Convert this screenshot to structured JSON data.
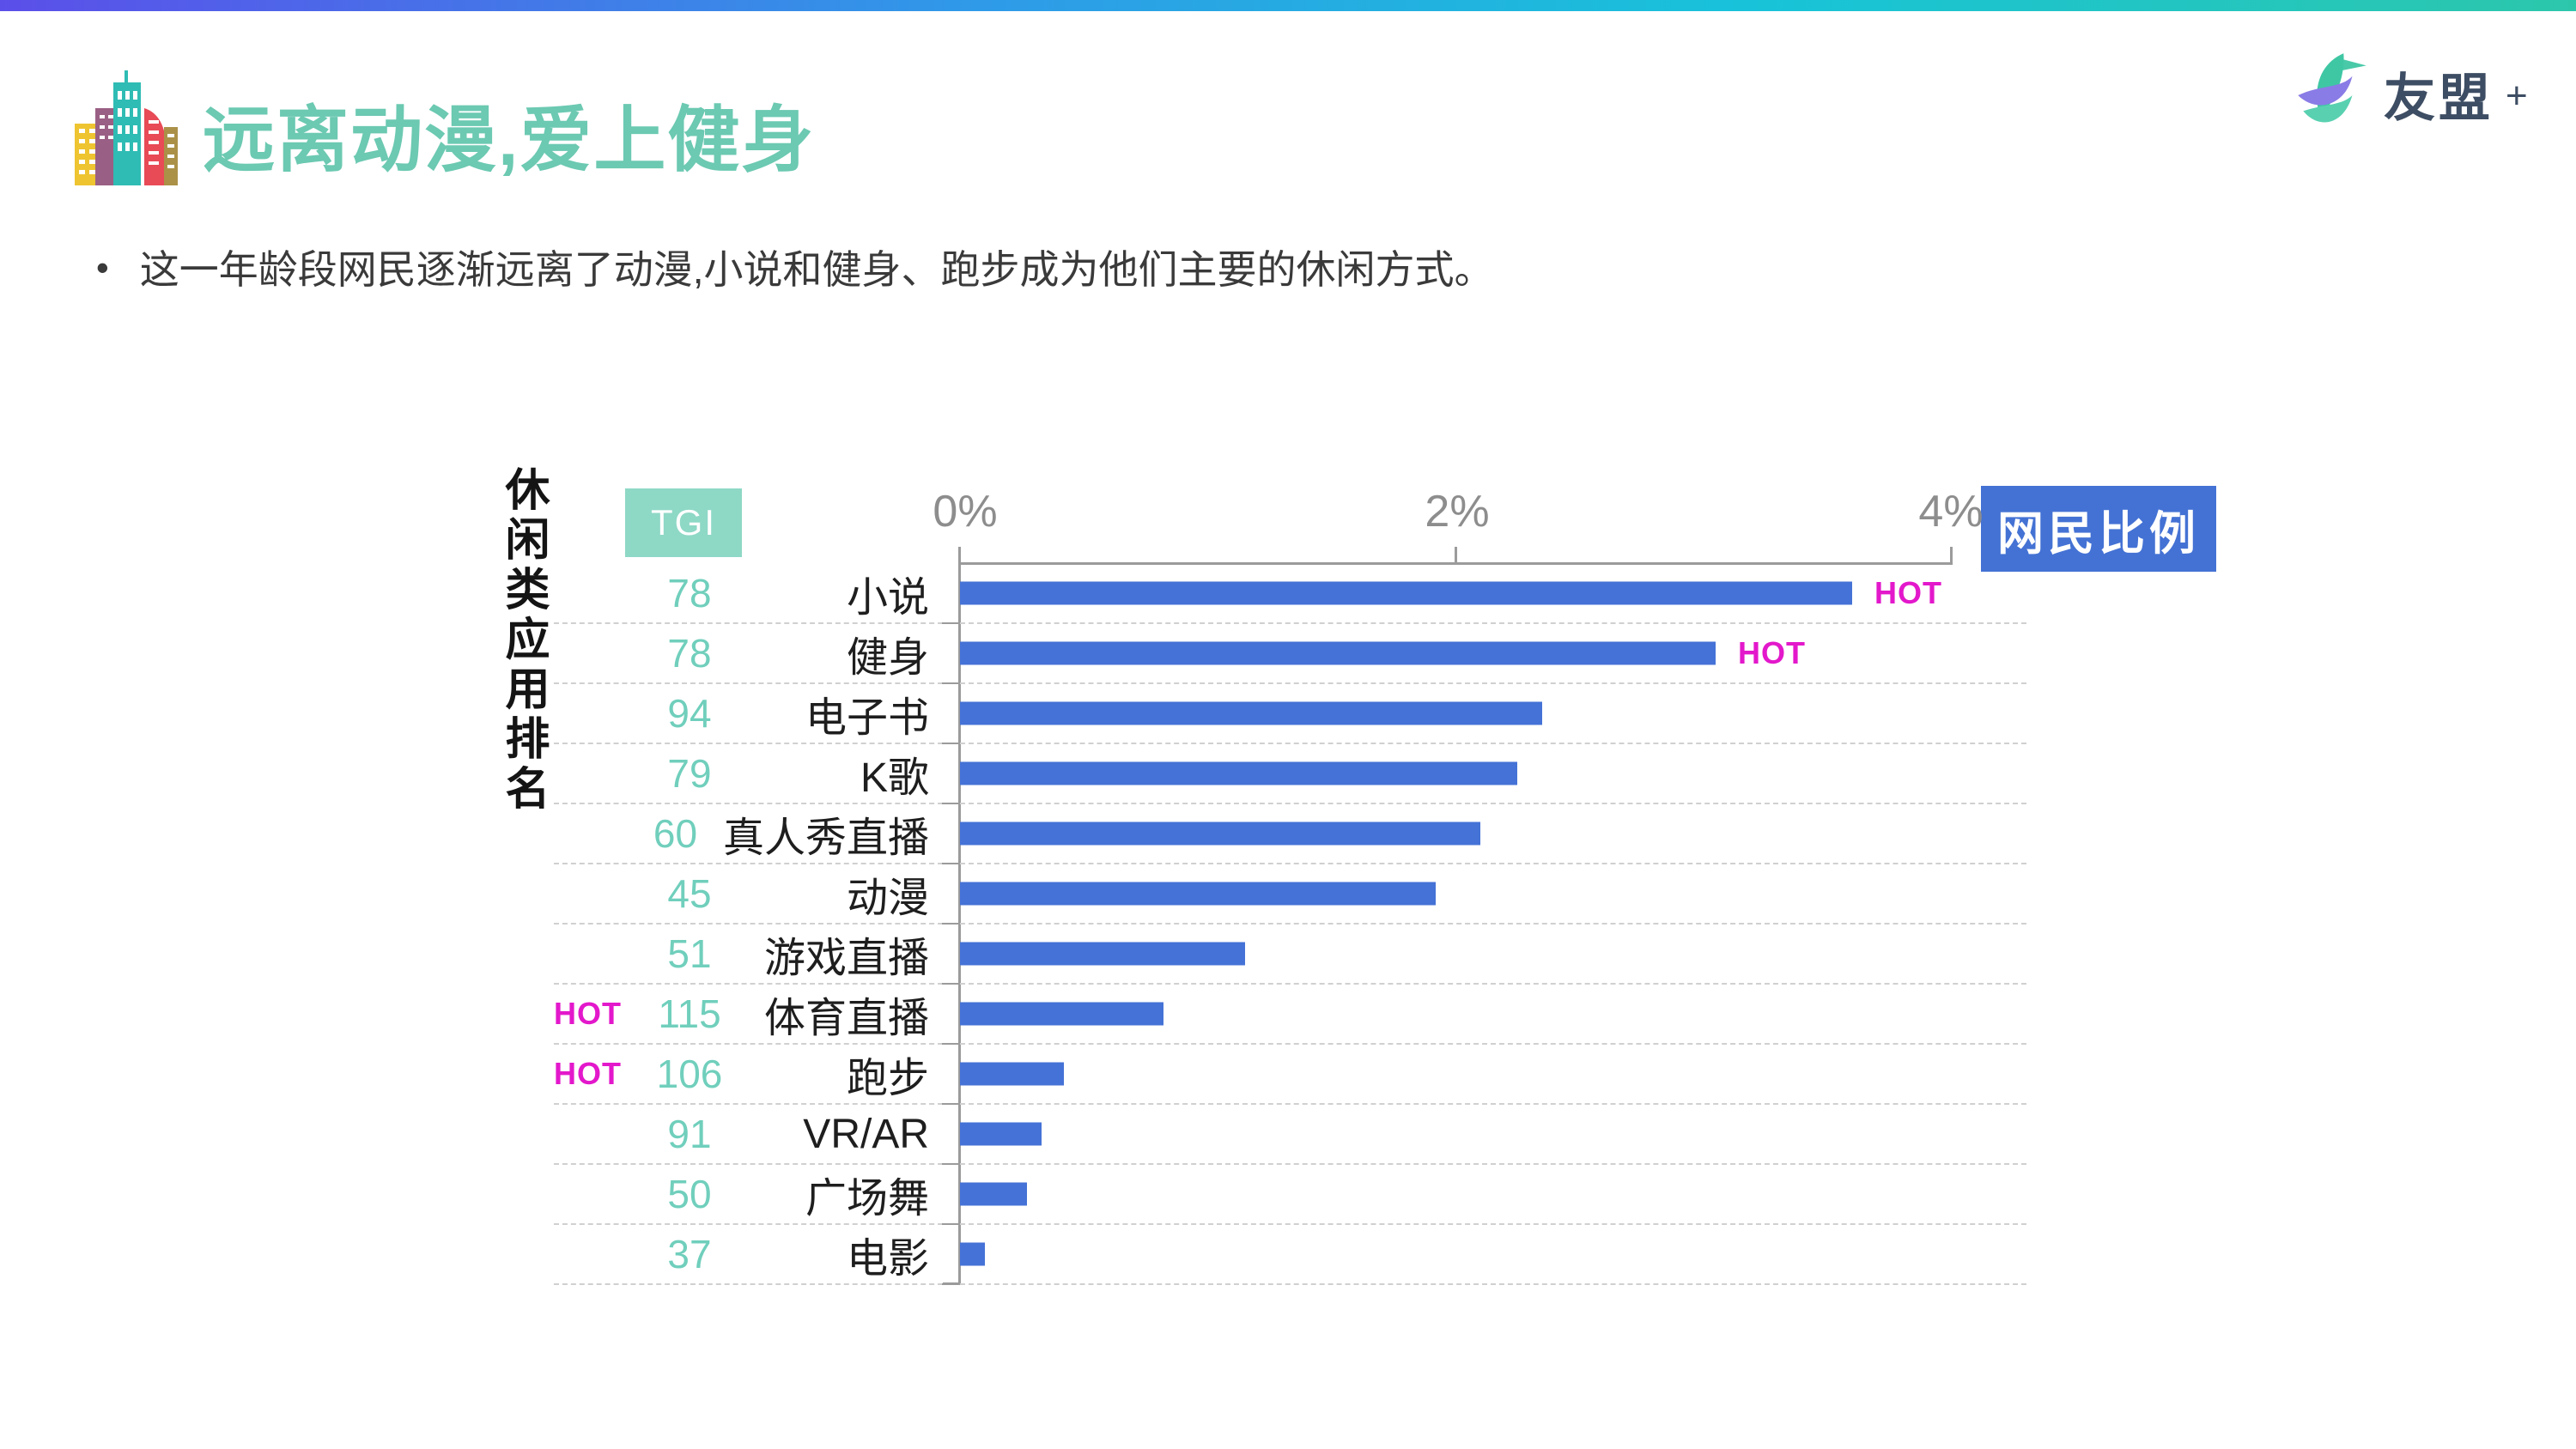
{
  "header": {
    "title": "远离动漫,爱上健身",
    "title_color": "#6cc9b2",
    "logo_text": "友盟",
    "logo_plus": "+"
  },
  "bullet": {
    "marker": "•",
    "text": "这一年龄段网民逐渐远离了动漫,小说和健身、跑步成为他们主要的休闲方式。"
  },
  "chart_data": {
    "type": "bar",
    "orientation": "horizontal",
    "axis_label_left": "休闲类应用排名",
    "tgi_header": "TGI",
    "value_axis_label": "网民比例",
    "hot_label": "HOT",
    "x_ticks": [
      "0%",
      "2%",
      "4%"
    ],
    "x_range": [
      0,
      4
    ],
    "x_unit": "percent",
    "grid": "dashed-row-separators",
    "bar_color": "#4472d6",
    "tgi_color": "#70cfbc",
    "hot_color": "#e318cb",
    "badge_color": "#4472d4",
    "tgi_box_color": "#8ed8c6",
    "rows": [
      {
        "category": "小说",
        "tgi": 78,
        "value": 3.6,
        "hot": "right"
      },
      {
        "category": "健身",
        "tgi": 78,
        "value": 3.05,
        "hot": "right"
      },
      {
        "category": "电子书",
        "tgi": 94,
        "value": 2.35,
        "hot": null
      },
      {
        "category": "K歌",
        "tgi": 79,
        "value": 2.25,
        "hot": null
      },
      {
        "category": "真人秀直播",
        "tgi": 60,
        "value": 2.1,
        "hot": null
      },
      {
        "category": "动漫",
        "tgi": 45,
        "value": 1.92,
        "hot": null
      },
      {
        "category": "游戏直播",
        "tgi": 51,
        "value": 1.15,
        "hot": null
      },
      {
        "category": "体育直播",
        "tgi": 115,
        "value": 0.82,
        "hot": "left"
      },
      {
        "category": "跑步",
        "tgi": 106,
        "value": 0.42,
        "hot": "left"
      },
      {
        "category": "VR/AR",
        "tgi": 91,
        "value": 0.33,
        "hot": null
      },
      {
        "category": "广场舞",
        "tgi": 50,
        "value": 0.27,
        "hot": null
      },
      {
        "category": "电影",
        "tgi": 37,
        "value": 0.1,
        "hot": null
      }
    ]
  }
}
